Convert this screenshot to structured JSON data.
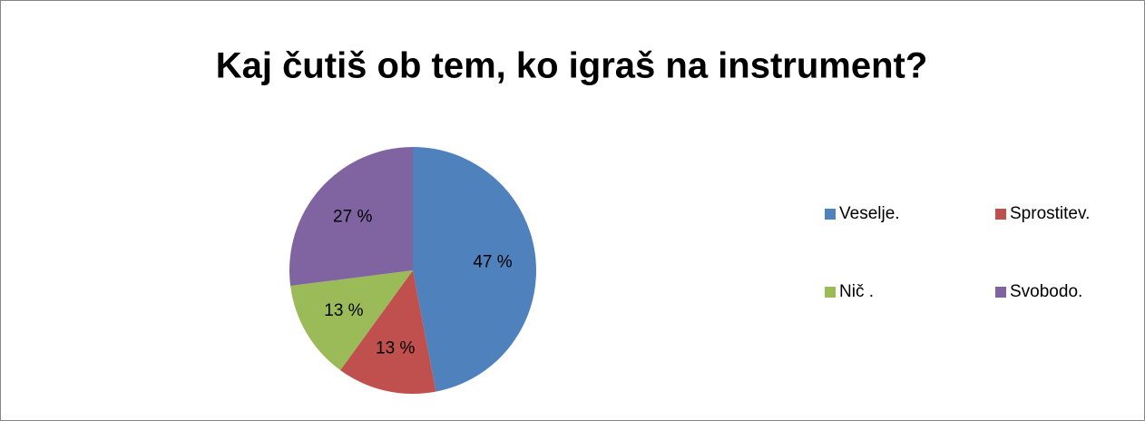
{
  "chart_data": {
    "type": "pie",
    "title": "Kaj čutiš ob tem, ko igraš na instrument?",
    "categories": [
      "Veselje.",
      "Sprostitev.",
      "Nič .",
      "Svobodo."
    ],
    "values": [
      47,
      13,
      13,
      27
    ],
    "value_labels": [
      "47 %",
      "13 %",
      "13 %",
      "27 %"
    ],
    "colors": [
      "#4f81bd",
      "#c0504d",
      "#9bbb59",
      "#8064a2"
    ],
    "legend": "right"
  }
}
